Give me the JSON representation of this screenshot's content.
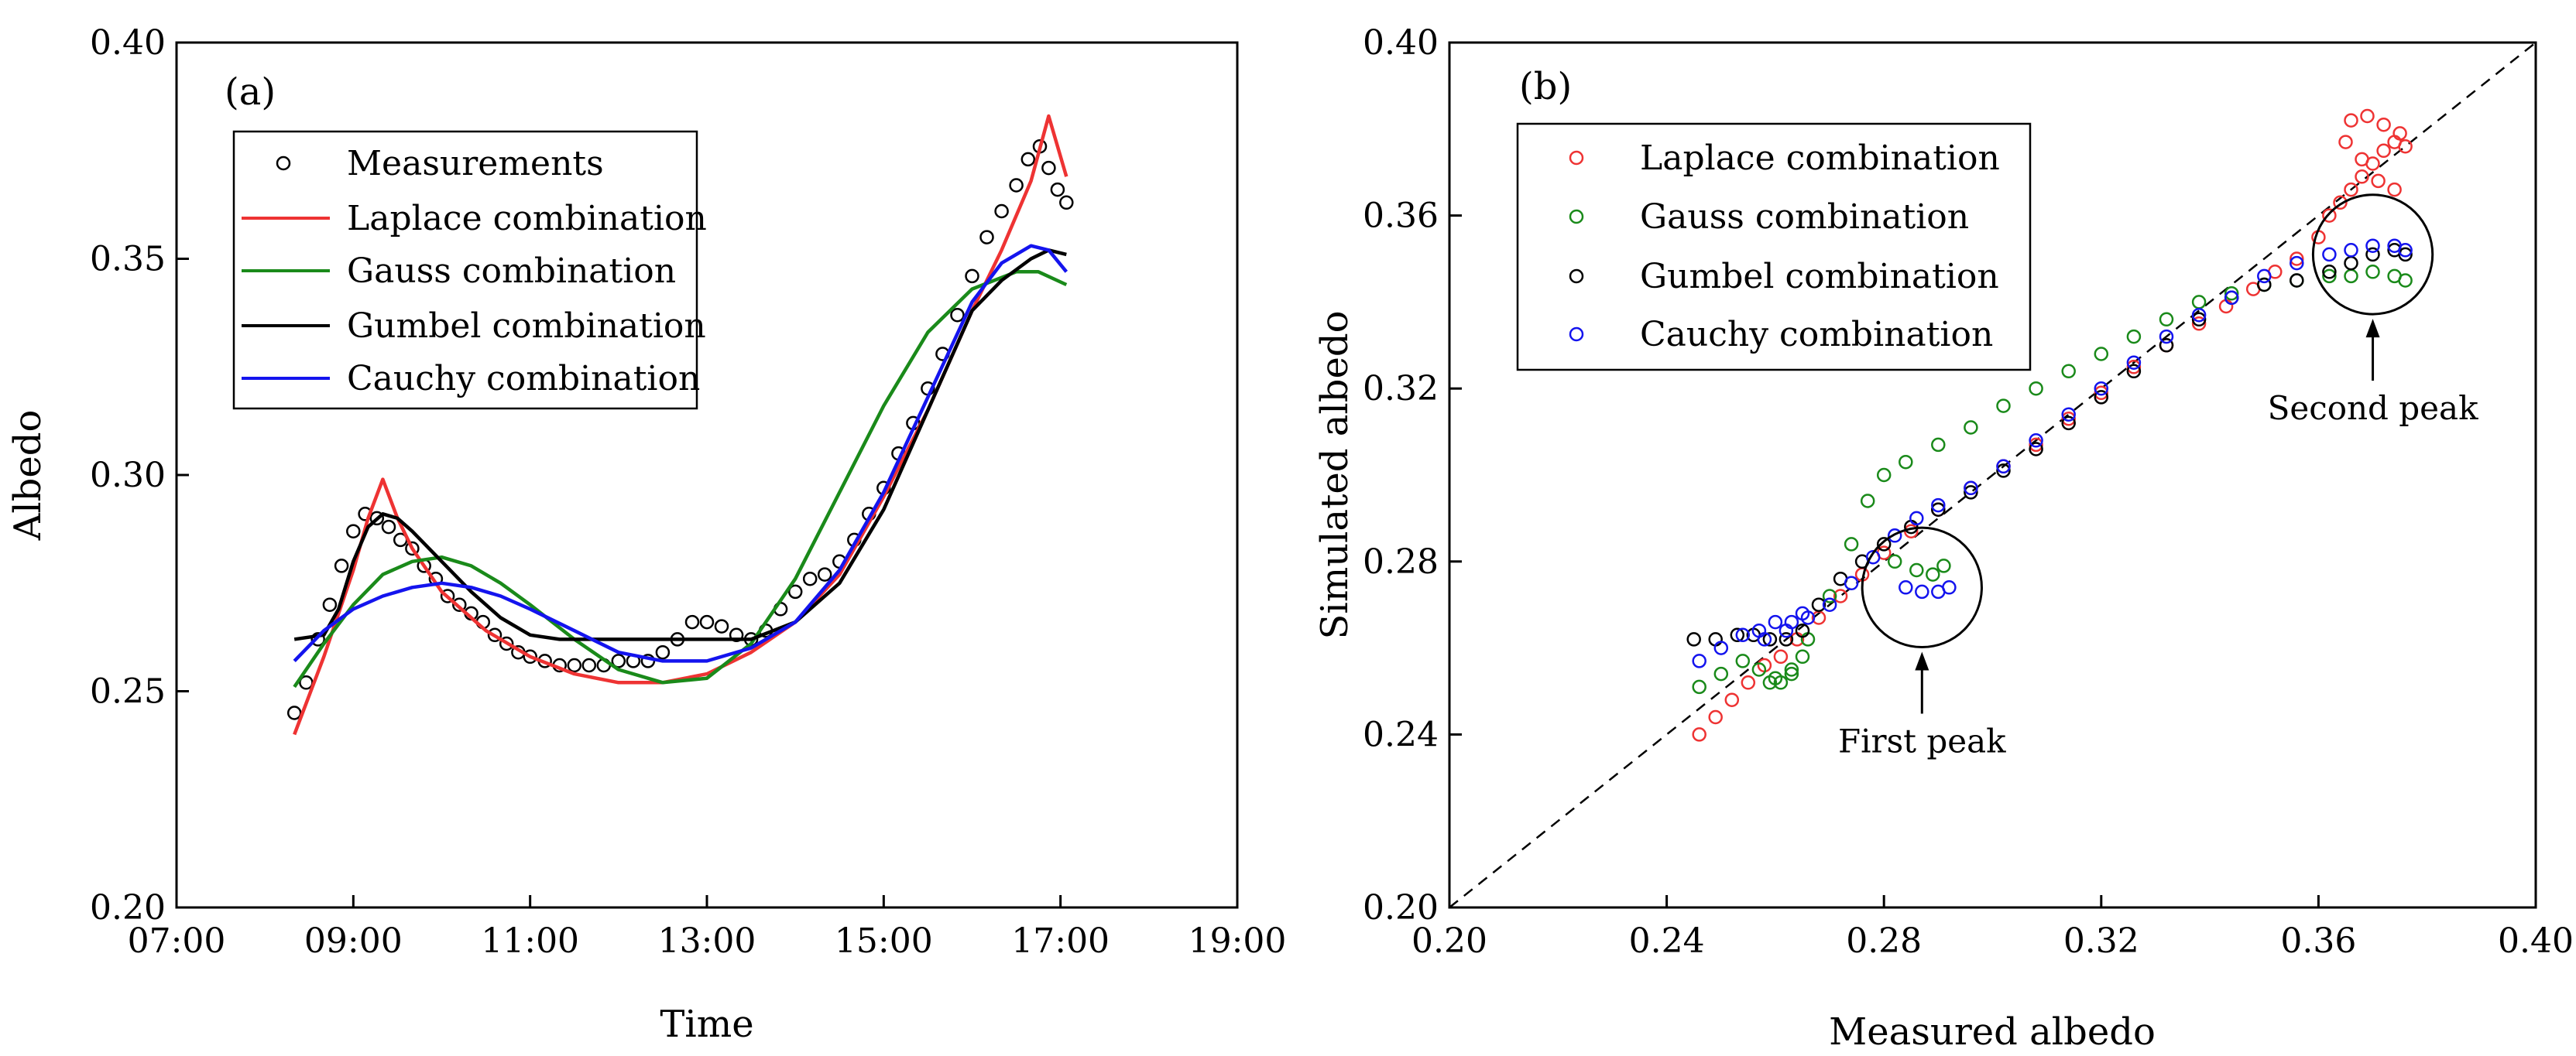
{
  "colors": {
    "measurements": "#000000",
    "laplace": "#ee3333",
    "gauss": "#1a8a1a",
    "gumbel": "#000000",
    "cauchy": "#1414ee",
    "diagonal": "#000000"
  },
  "chart_data": [
    {
      "type": "line",
      "panel_label": "(a)",
      "xlabel": "Time",
      "ylabel": "Albedo",
      "xlim": [
        "07:00",
        "19:00"
      ],
      "ylim": [
        0.2,
        0.4
      ],
      "xticks": [
        "07:00",
        "09:00",
        "11:00",
        "13:00",
        "15:00",
        "17:00",
        "19:00"
      ],
      "yticks": [
        "0.20",
        "0.25",
        "0.30",
        "0.35",
        "0.40"
      ],
      "legend_position": "top-left",
      "series": [
        {
          "name": "Measurements",
          "style": "markers",
          "color_key": "measurements",
          "x": [
            "08:20",
            "08:28",
            "08:36",
            "08:44",
            "08:52",
            "09:00",
            "09:08",
            "09:16",
            "09:24",
            "09:32",
            "09:40",
            "09:48",
            "09:56",
            "10:04",
            "10:12",
            "10:20",
            "10:28",
            "10:36",
            "10:44",
            "10:52",
            "11:00",
            "11:10",
            "11:20",
            "11:30",
            "11:40",
            "11:50",
            "12:00",
            "12:10",
            "12:20",
            "12:30",
            "12:40",
            "12:50",
            "13:00",
            "13:10",
            "13:20",
            "13:30",
            "13:40",
            "13:50",
            "14:00",
            "14:10",
            "14:20",
            "14:30",
            "14:40",
            "14:50",
            "15:00",
            "15:10",
            "15:20",
            "15:30",
            "15:40",
            "15:50",
            "16:00",
            "16:10",
            "16:20",
            "16:30",
            "16:38",
            "16:46",
            "16:52",
            "16:58",
            "17:04"
          ],
          "values": [
            0.245,
            0.252,
            0.262,
            0.27,
            0.279,
            0.287,
            0.291,
            0.29,
            0.288,
            0.285,
            0.283,
            0.279,
            0.276,
            0.272,
            0.27,
            0.268,
            0.266,
            0.263,
            0.261,
            0.259,
            0.258,
            0.257,
            0.256,
            0.256,
            0.256,
            0.256,
            0.257,
            0.257,
            0.257,
            0.259,
            0.262,
            0.266,
            0.266,
            0.265,
            0.263,
            0.262,
            0.264,
            0.269,
            0.273,
            0.276,
            0.277,
            0.28,
            0.285,
            0.291,
            0.297,
            0.305,
            0.312,
            0.32,
            0.328,
            0.337,
            0.346,
            0.355,
            0.361,
            0.367,
            0.373,
            0.376,
            0.371,
            0.366,
            0.363
          ]
        },
        {
          "name": "Laplace combination",
          "style": "line",
          "color_key": "laplace",
          "x": [
            "08:20",
            "08:40",
            "09:00",
            "09:10",
            "09:20",
            "09:30",
            "09:40",
            "10:00",
            "10:30",
            "11:00",
            "11:30",
            "12:00",
            "12:30",
            "13:00",
            "13:30",
            "14:00",
            "14:30",
            "15:00",
            "15:30",
            "16:00",
            "16:20",
            "16:40",
            "16:52",
            "17:04"
          ],
          "values": [
            0.24,
            0.258,
            0.278,
            0.29,
            0.299,
            0.29,
            0.283,
            0.273,
            0.264,
            0.258,
            0.254,
            0.252,
            0.252,
            0.254,
            0.259,
            0.266,
            0.277,
            0.295,
            0.315,
            0.338,
            0.352,
            0.368,
            0.383,
            0.369
          ]
        },
        {
          "name": "Gauss combination",
          "style": "line",
          "color_key": "gauss",
          "x": [
            "08:20",
            "08:40",
            "09:00",
            "09:20",
            "09:40",
            "10:00",
            "10:20",
            "10:40",
            "11:00",
            "11:30",
            "12:00",
            "12:30",
            "13:00",
            "13:30",
            "14:00",
            "14:30",
            "15:00",
            "15:30",
            "16:00",
            "16:30",
            "16:45",
            "17:04"
          ],
          "values": [
            0.251,
            0.261,
            0.27,
            0.277,
            0.28,
            0.281,
            0.279,
            0.275,
            0.27,
            0.262,
            0.255,
            0.252,
            0.253,
            0.261,
            0.276,
            0.296,
            0.316,
            0.333,
            0.343,
            0.347,
            0.347,
            0.344
          ]
        },
        {
          "name": "Gumbel combination",
          "style": "line",
          "color_key": "gumbel",
          "x": [
            "08:20",
            "08:40",
            "08:50",
            "09:00",
            "09:10",
            "09:20",
            "09:30",
            "09:40",
            "10:00",
            "10:20",
            "10:40",
            "11:00",
            "11:20",
            "11:40",
            "12:00",
            "12:30",
            "13:00",
            "13:30",
            "14:00",
            "14:30",
            "15:00",
            "15:30",
            "16:00",
            "16:20",
            "16:40",
            "16:52",
            "17:04"
          ],
          "values": [
            0.262,
            0.263,
            0.269,
            0.28,
            0.288,
            0.291,
            0.29,
            0.287,
            0.28,
            0.273,
            0.267,
            0.263,
            0.262,
            0.262,
            0.262,
            0.262,
            0.262,
            0.262,
            0.266,
            0.275,
            0.292,
            0.315,
            0.338,
            0.345,
            0.35,
            0.352,
            0.351
          ]
        },
        {
          "name": "Cauchy combination",
          "style": "line",
          "color_key": "cauchy",
          "x": [
            "08:20",
            "08:40",
            "09:00",
            "09:20",
            "09:40",
            "10:00",
            "10:20",
            "10:40",
            "11:00",
            "11:30",
            "12:00",
            "12:30",
            "13:00",
            "13:30",
            "14:00",
            "14:30",
            "15:00",
            "15:30",
            "16:00",
            "16:20",
            "16:40",
            "16:52",
            "17:04"
          ],
          "values": [
            0.257,
            0.264,
            0.269,
            0.272,
            0.274,
            0.275,
            0.274,
            0.272,
            0.269,
            0.264,
            0.259,
            0.257,
            0.257,
            0.26,
            0.266,
            0.278,
            0.296,
            0.318,
            0.34,
            0.349,
            0.353,
            0.352,
            0.347
          ]
        }
      ]
    },
    {
      "type": "scatter",
      "panel_label": "(b)",
      "xlabel": "Measured albedo",
      "ylabel": "Simulated albedo",
      "xlim": [
        0.2,
        0.4
      ],
      "ylim": [
        0.2,
        0.4
      ],
      "xticks": [
        "0.20",
        "0.24",
        "0.28",
        "0.32",
        "0.36",
        "0.40"
      ],
      "yticks": [
        "0.20",
        "0.24",
        "0.28",
        "0.32",
        "0.36",
        "0.40"
      ],
      "reference_line": "1:1 dashed",
      "legend_position": "top-left",
      "annotations": [
        {
          "text": "First peak",
          "circle_center": [
            0.287,
            0.274
          ],
          "circle_radius": 0.011
        },
        {
          "text": "Second peak",
          "circle_center": [
            0.37,
            0.351
          ],
          "circle_radius": 0.011
        }
      ],
      "series": [
        {
          "name": "Laplace combination",
          "color_key": "laplace",
          "x": [
            0.246,
            0.249,
            0.252,
            0.255,
            0.258,
            0.261,
            0.264,
            0.268,
            0.272,
            0.276,
            0.28,
            0.285,
            0.29,
            0.296,
            0.302,
            0.308,
            0.314,
            0.32,
            0.326,
            0.332,
            0.338,
            0.343,
            0.348,
            0.352,
            0.356,
            0.36,
            0.362,
            0.364,
            0.366,
            0.368,
            0.37,
            0.372,
            0.374,
            0.376,
            0.375,
            0.372,
            0.369,
            0.366,
            0.365,
            0.368,
            0.371,
            0.374
          ],
          "values": [
            0.24,
            0.244,
            0.248,
            0.252,
            0.256,
            0.258,
            0.262,
            0.267,
            0.272,
            0.277,
            0.282,
            0.287,
            0.292,
            0.297,
            0.302,
            0.307,
            0.313,
            0.319,
            0.325,
            0.33,
            0.335,
            0.339,
            0.343,
            0.347,
            0.35,
            0.355,
            0.36,
            0.363,
            0.366,
            0.369,
            0.372,
            0.375,
            0.377,
            0.376,
            0.379,
            0.381,
            0.383,
            0.382,
            0.377,
            0.373,
            0.368,
            0.366
          ]
        },
        {
          "name": "Gauss combination",
          "color_key": "gauss",
          "x": [
            0.246,
            0.25,
            0.254,
            0.257,
            0.259,
            0.261,
            0.263,
            0.266,
            0.27,
            0.274,
            0.277,
            0.28,
            0.284,
            0.29,
            0.296,
            0.302,
            0.308,
            0.314,
            0.32,
            0.326,
            0.332,
            0.338,
            0.344,
            0.35,
            0.356,
            0.362,
            0.366,
            0.37,
            0.374,
            0.376,
            0.282,
            0.286,
            0.289,
            0.291,
            0.26,
            0.263,
            0.265
          ],
          "values": [
            0.251,
            0.254,
            0.257,
            0.255,
            0.252,
            0.252,
            0.254,
            0.262,
            0.272,
            0.284,
            0.294,
            0.3,
            0.303,
            0.307,
            0.311,
            0.316,
            0.32,
            0.324,
            0.328,
            0.332,
            0.336,
            0.34,
            0.342,
            0.344,
            0.345,
            0.346,
            0.346,
            0.347,
            0.346,
            0.345,
            0.28,
            0.278,
            0.277,
            0.279,
            0.253,
            0.255,
            0.258
          ]
        },
        {
          "name": "Gumbel combination",
          "color_key": "gumbel",
          "x": [
            0.245,
            0.249,
            0.253,
            0.256,
            0.259,
            0.262,
            0.265,
            0.268,
            0.272,
            0.276,
            0.28,
            0.285,
            0.29,
            0.296,
            0.302,
            0.308,
            0.314,
            0.32,
            0.326,
            0.332,
            0.338,
            0.344,
            0.35,
            0.356,
            0.362,
            0.366,
            0.37,
            0.374,
            0.376
          ],
          "values": [
            0.262,
            0.262,
            0.263,
            0.263,
            0.262,
            0.262,
            0.264,
            0.27,
            0.276,
            0.28,
            0.284,
            0.288,
            0.292,
            0.296,
            0.301,
            0.306,
            0.312,
            0.318,
            0.324,
            0.33,
            0.336,
            0.341,
            0.344,
            0.345,
            0.347,
            0.349,
            0.351,
            0.352,
            0.351
          ]
        },
        {
          "name": "Cauchy combination",
          "color_key": "cauchy",
          "x": [
            0.246,
            0.25,
            0.254,
            0.257,
            0.26,
            0.263,
            0.266,
            0.27,
            0.274,
            0.278,
            0.282,
            0.286,
            0.29,
            0.296,
            0.302,
            0.308,
            0.314,
            0.32,
            0.326,
            0.332,
            0.338,
            0.344,
            0.35,
            0.356,
            0.362,
            0.366,
            0.37,
            0.374,
            0.376,
            0.284,
            0.287,
            0.29,
            0.292,
            0.258,
            0.262,
            0.265
          ],
          "values": [
            0.257,
            0.26,
            0.263,
            0.264,
            0.266,
            0.266,
            0.267,
            0.27,
            0.275,
            0.281,
            0.286,
            0.29,
            0.293,
            0.297,
            0.302,
            0.308,
            0.314,
            0.32,
            0.326,
            0.332,
            0.337,
            0.341,
            0.346,
            0.349,
            0.351,
            0.352,
            0.353,
            0.353,
            0.352,
            0.274,
            0.273,
            0.273,
            0.274,
            0.262,
            0.264,
            0.268
          ]
        }
      ]
    }
  ]
}
